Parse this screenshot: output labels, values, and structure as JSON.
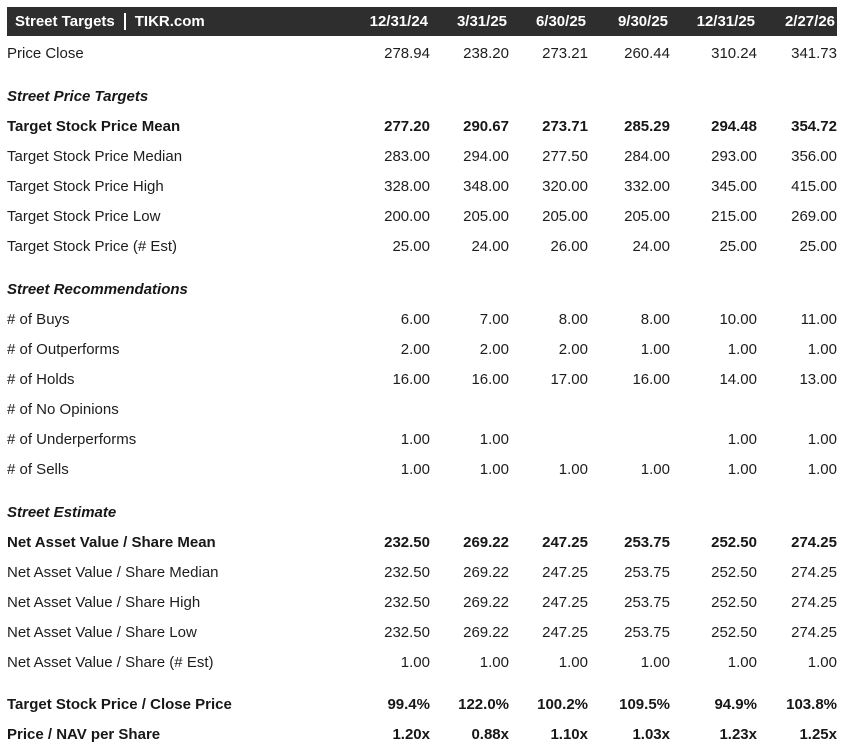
{
  "header": {
    "title_left": "Street Targets",
    "title_right": "TIKR.com",
    "columns": [
      "12/31/24",
      "3/31/25",
      "6/30/25",
      "9/30/25",
      "12/31/25",
      "2/27/26"
    ]
  },
  "colors": {
    "header_bg": "#2e2e2e",
    "header_text": "#ffffff",
    "body_text": "#1d1d1d"
  },
  "rows": [
    {
      "kind": "data",
      "label": "Price Close",
      "bold": false,
      "values": [
        "278.94",
        "238.20",
        "273.21",
        "260.44",
        "310.24",
        "341.73"
      ]
    },
    {
      "kind": "section",
      "label": "Street Price Targets"
    },
    {
      "kind": "data",
      "label": "Target Stock Price Mean",
      "bold": true,
      "values": [
        "277.20",
        "290.67",
        "273.71",
        "285.29",
        "294.48",
        "354.72"
      ]
    },
    {
      "kind": "data",
      "label": "Target Stock Price Median",
      "bold": false,
      "values": [
        "283.00",
        "294.00",
        "277.50",
        "284.00",
        "293.00",
        "356.00"
      ]
    },
    {
      "kind": "data",
      "label": "Target Stock Price High",
      "bold": false,
      "values": [
        "328.00",
        "348.00",
        "320.00",
        "332.00",
        "345.00",
        "415.00"
      ]
    },
    {
      "kind": "data",
      "label": "Target Stock Price Low",
      "bold": false,
      "values": [
        "200.00",
        "205.00",
        "205.00",
        "205.00",
        "215.00",
        "269.00"
      ]
    },
    {
      "kind": "data",
      "label": "Target Stock Price (# Est)",
      "bold": false,
      "values": [
        "25.00",
        "24.00",
        "26.00",
        "24.00",
        "25.00",
        "25.00"
      ]
    },
    {
      "kind": "section",
      "label": "Street Recommendations"
    },
    {
      "kind": "data",
      "label": "# of Buys",
      "bold": false,
      "values": [
        "6.00",
        "7.00",
        "8.00",
        "8.00",
        "10.00",
        "11.00"
      ]
    },
    {
      "kind": "data",
      "label": "# of Outperforms",
      "bold": false,
      "values": [
        "2.00",
        "2.00",
        "2.00",
        "1.00",
        "1.00",
        "1.00"
      ]
    },
    {
      "kind": "data",
      "label": "# of Holds",
      "bold": false,
      "values": [
        "16.00",
        "16.00",
        "17.00",
        "16.00",
        "14.00",
        "13.00"
      ]
    },
    {
      "kind": "data",
      "label": "# of No Opinions",
      "bold": false,
      "values": [
        "",
        "",
        "",
        "",
        "",
        ""
      ]
    },
    {
      "kind": "data",
      "label": "# of Underperforms",
      "bold": false,
      "values": [
        "1.00",
        "1.00",
        "",
        "",
        "1.00",
        "1.00"
      ]
    },
    {
      "kind": "data",
      "label": "# of Sells",
      "bold": false,
      "values": [
        "1.00",
        "1.00",
        "1.00",
        "1.00",
        "1.00",
        "1.00"
      ]
    },
    {
      "kind": "section",
      "label": "Street Estimate"
    },
    {
      "kind": "data",
      "label": "Net Asset Value / Share Mean",
      "bold": true,
      "values": [
        "232.50",
        "269.22",
        "247.25",
        "253.75",
        "252.50",
        "274.25"
      ]
    },
    {
      "kind": "data",
      "label": "Net Asset Value / Share Median",
      "bold": false,
      "values": [
        "232.50",
        "269.22",
        "247.25",
        "253.75",
        "252.50",
        "274.25"
      ]
    },
    {
      "kind": "data",
      "label": "Net Asset Value / Share High",
      "bold": false,
      "values": [
        "232.50",
        "269.22",
        "247.25",
        "253.75",
        "252.50",
        "274.25"
      ]
    },
    {
      "kind": "data",
      "label": "Net Asset Value / Share Low",
      "bold": false,
      "values": [
        "232.50",
        "269.22",
        "247.25",
        "253.75",
        "252.50",
        "274.25"
      ]
    },
    {
      "kind": "data",
      "label": "Net Asset Value / Share (# Est)",
      "bold": false,
      "values": [
        "1.00",
        "1.00",
        "1.00",
        "1.00",
        "1.00",
        "1.00"
      ]
    },
    {
      "kind": "spacer"
    },
    {
      "kind": "data",
      "label": "Target Stock Price / Close Price",
      "bold": true,
      "values": [
        "99.4%",
        "122.0%",
        "100.2%",
        "109.5%",
        "94.9%",
        "103.8%"
      ]
    },
    {
      "kind": "data",
      "label": "Price / NAV per Share",
      "bold": true,
      "values": [
        "1.20x",
        "0.88x",
        "1.10x",
        "1.03x",
        "1.23x",
        "1.25x"
      ]
    }
  ]
}
